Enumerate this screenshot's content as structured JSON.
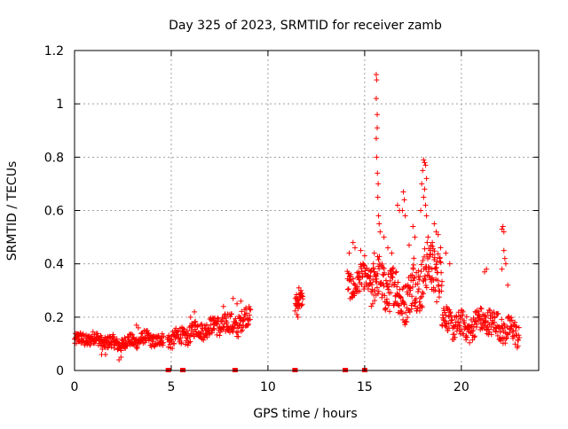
{
  "chart_data": {
    "type": "scatter",
    "title": "Day 325 of 2023, SRMTID for receiver zamb",
    "xlabel": "GPS time / hours",
    "ylabel": "SRMTID / TECUs",
    "xlim": [
      0,
      24
    ],
    "ylim": [
      0,
      1.2
    ],
    "xticks": [
      0,
      5,
      10,
      15,
      20
    ],
    "yticks": [
      0,
      0.2,
      0.4,
      0.6,
      0.8,
      1,
      1.2
    ],
    "ytick_labels": [
      "0",
      "0.2",
      "0.4",
      "0.6",
      "0.8",
      "1",
      "1.2"
    ],
    "grid": true,
    "marker": "+",
    "colors": {
      "series": "#ff0000",
      "grid": "#a0a0a0",
      "axis": "#000000"
    },
    "segments": [
      {
        "start": 0.0,
        "end": 4.6,
        "base": 0.11,
        "spread": 0.03,
        "trend": 0.0,
        "density": 60
      },
      {
        "start": 4.8,
        "end": 7.2,
        "base": 0.13,
        "spread": 0.04,
        "trend": 0.02,
        "density": 55
      },
      {
        "start": 7.2,
        "end": 9.1,
        "base": 0.17,
        "spread": 0.05,
        "trend": 0.03,
        "density": 55
      },
      {
        "start": 11.4,
        "end": 11.8,
        "base": 0.25,
        "spread": 0.04,
        "trend": 0.04,
        "density": 80
      },
      {
        "start": 14.1,
        "end": 15.3,
        "base": 0.34,
        "spread": 0.06,
        "trend": 0.0,
        "density": 60
      },
      {
        "start": 15.3,
        "end": 17.5,
        "base": 0.3,
        "spread": 0.1,
        "trend": 0.0,
        "density": 70
      },
      {
        "start": 17.5,
        "end": 19.0,
        "base": 0.35,
        "spread": 0.12,
        "trend": 0.0,
        "density": 70
      },
      {
        "start": 19.0,
        "end": 21.5,
        "base": 0.18,
        "spread": 0.06,
        "trend": 0.0,
        "density": 60
      },
      {
        "start": 21.5,
        "end": 23.0,
        "base": 0.15,
        "spread": 0.06,
        "trend": 0.0,
        "density": 55
      }
    ],
    "points": [
      [
        15.6,
        1.11
      ],
      [
        15.62,
        1.09
      ],
      [
        15.6,
        1.02
      ],
      [
        15.65,
        0.96
      ],
      [
        15.65,
        0.91
      ],
      [
        15.6,
        0.87
      ],
      [
        15.62,
        0.8
      ],
      [
        15.66,
        0.74
      ],
      [
        15.7,
        0.7
      ],
      [
        15.68,
        0.65
      ],
      [
        15.72,
        0.58
      ],
      [
        15.75,
        0.55
      ],
      [
        15.8,
        0.52
      ],
      [
        16.0,
        0.5
      ],
      [
        15.5,
        0.44
      ],
      [
        15.45,
        0.4
      ],
      [
        17.0,
        0.67
      ],
      [
        17.05,
        0.64
      ],
      [
        16.95,
        0.6
      ],
      [
        17.1,
        0.58
      ],
      [
        16.7,
        0.62
      ],
      [
        16.8,
        0.6
      ],
      [
        17.5,
        0.54
      ],
      [
        17.6,
        0.5
      ],
      [
        17.3,
        0.47
      ],
      [
        18.05,
        0.79
      ],
      [
        18.1,
        0.78
      ],
      [
        18.15,
        0.77
      ],
      [
        18.0,
        0.75
      ],
      [
        18.2,
        0.72
      ],
      [
        17.95,
        0.7
      ],
      [
        18.1,
        0.68
      ],
      [
        18.05,
        0.65
      ],
      [
        18.15,
        0.62
      ],
      [
        18.2,
        0.58
      ],
      [
        17.9,
        0.6
      ],
      [
        18.6,
        0.55
      ],
      [
        18.7,
        0.52
      ],
      [
        18.8,
        0.51
      ],
      [
        18.5,
        0.48
      ],
      [
        18.4,
        0.45
      ],
      [
        14.4,
        0.48
      ],
      [
        14.5,
        0.46
      ],
      [
        14.8,
        0.45
      ],
      [
        14.2,
        0.44
      ],
      [
        15.0,
        0.43
      ],
      [
        16.2,
        0.46
      ],
      [
        16.4,
        0.44
      ],
      [
        19.2,
        0.44
      ],
      [
        19.4,
        0.4
      ],
      [
        21.2,
        0.37
      ],
      [
        21.3,
        0.38
      ],
      [
        22.1,
        0.53
      ],
      [
        22.15,
        0.54
      ],
      [
        22.2,
        0.52
      ],
      [
        22.2,
        0.45
      ],
      [
        22.25,
        0.42
      ],
      [
        22.3,
        0.4
      ],
      [
        22.1,
        0.38
      ],
      [
        22.4,
        0.32
      ],
      [
        11.6,
        0.31
      ],
      [
        11.7,
        0.3
      ],
      [
        11.5,
        0.21
      ],
      [
        11.55,
        0.2
      ],
      [
        8.2,
        0.27
      ],
      [
        8.6,
        0.26
      ],
      [
        8.4,
        0.25
      ],
      [
        7.7,
        0.24
      ],
      [
        6.2,
        0.22
      ],
      [
        6.0,
        0.2
      ],
      [
        2.3,
        0.04
      ],
      [
        2.4,
        0.05
      ],
      [
        1.4,
        0.06
      ],
      [
        1.6,
        0.06
      ],
      [
        3.2,
        0.17
      ],
      [
        3.3,
        0.16
      ]
    ],
    "baseline_markers": [
      4.85,
      5.6,
      8.3,
      11.4,
      14.0,
      15.0
    ]
  }
}
